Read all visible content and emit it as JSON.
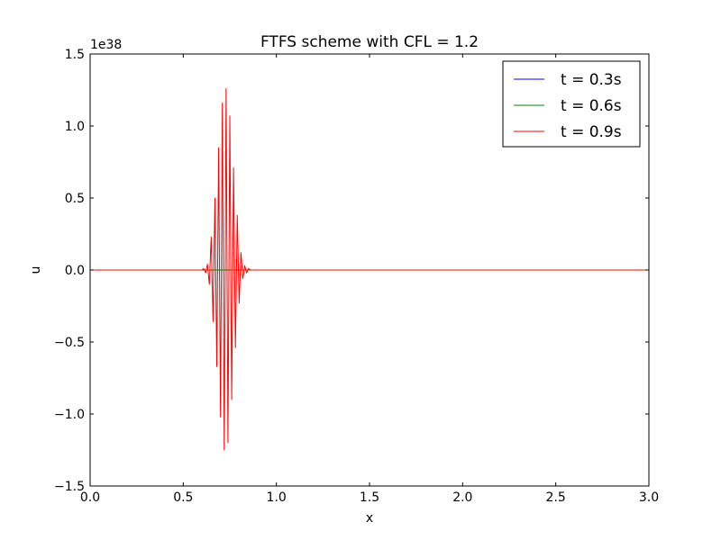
{
  "chart_data": {
    "type": "line",
    "title": "FTFS scheme with CFL = 1.2",
    "xlabel": "x",
    "ylabel": "u",
    "xlim": [
      0.0,
      3.0
    ],
    "ylim": [
      -1.5,
      1.5
    ],
    "y_offset_label": "1e38",
    "y_scale": 1e+38,
    "grid": false,
    "legend_position": "top-right",
    "xticks": [
      0.0,
      0.5,
      1.0,
      1.5,
      2.0,
      2.5,
      3.0
    ],
    "xtick_labels": [
      "0.0",
      "0.5",
      "1.0",
      "1.5",
      "2.0",
      "2.5",
      "3.0"
    ],
    "yticks": [
      -1.5,
      -1.0,
      -0.5,
      0.0,
      0.5,
      1.0,
      1.5
    ],
    "ytick_labels": [
      "−1.5",
      "−1.0",
      "−0.5",
      "0.0",
      "0.5",
      "1.0",
      "1.5"
    ],
    "series": [
      {
        "name": "t = 0.3s",
        "color": "#0000ff",
        "x": [
          0.0,
          3.0
        ],
        "y": [
          0.0,
          0.0
        ]
      },
      {
        "name": "t = 0.6s",
        "color": "#008000",
        "x": [
          0.0,
          3.0
        ],
        "y": [
          0.0,
          0.0
        ]
      },
      {
        "name": "t = 0.9s",
        "color": "#ff0000",
        "x": [
          0.0,
          0.6,
          0.61,
          0.62,
          0.63,
          0.64,
          0.65,
          0.66,
          0.67,
          0.68,
          0.69,
          0.7,
          0.71,
          0.72,
          0.73,
          0.74,
          0.75,
          0.76,
          0.77,
          0.78,
          0.79,
          0.8,
          0.81,
          0.82,
          0.83,
          0.84,
          0.85,
          0.86,
          0.87,
          3.0
        ],
        "y": [
          0.0,
          0.0,
          0.01,
          -0.02,
          0.04,
          -0.1,
          0.23,
          -0.36,
          0.5,
          -0.67,
          0.85,
          -1.02,
          1.16,
          -1.25,
          1.26,
          -1.2,
          1.07,
          -0.9,
          0.71,
          -0.54,
          0.38,
          -0.23,
          0.12,
          -0.06,
          0.03,
          -0.02,
          0.01,
          0.0,
          0.0,
          0.0
        ]
      }
    ]
  }
}
